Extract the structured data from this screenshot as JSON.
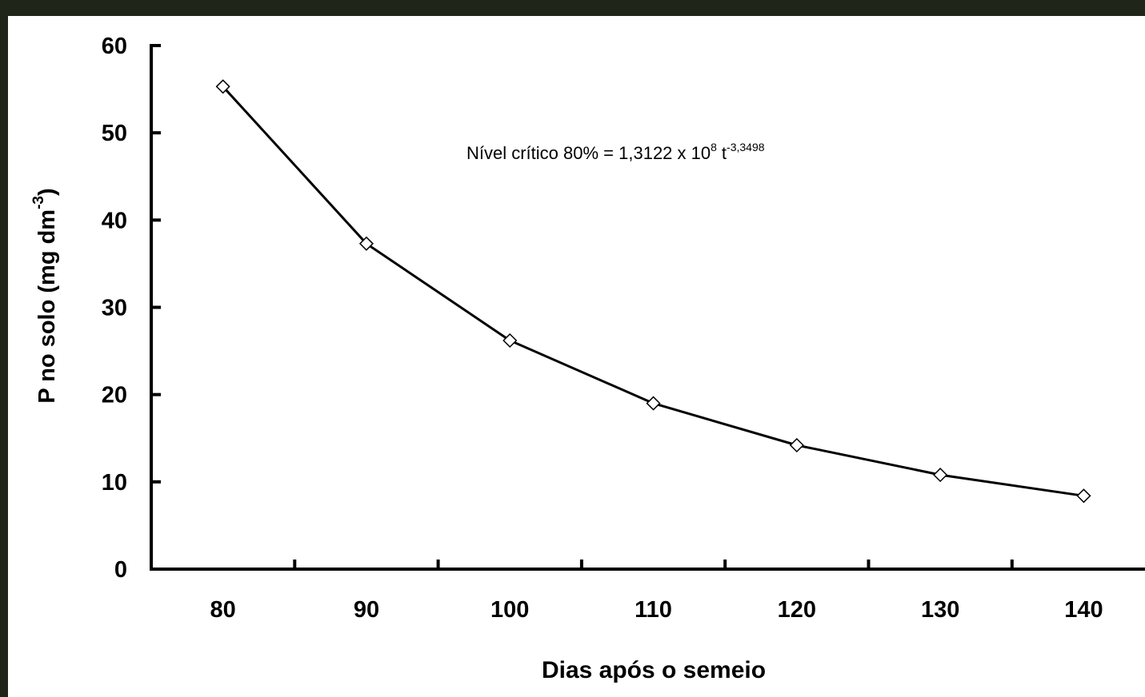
{
  "chart_data": {
    "type": "line",
    "y_label": [
      "P no solo (mg dm",
      "-3",
      ")"
    ],
    "x_label": "Dias após o semeio",
    "annotation": [
      "Nível crítico 80% = 1,3122 x 10",
      "8",
      "t",
      "-3,3498"
    ],
    "categories": [
      "80",
      "90",
      "100",
      "110",
      "120",
      "130",
      "140"
    ],
    "series": [
      {
        "color": "#000000",
        "values": [
          55.3,
          37.3,
          26.2,
          19.0,
          14.2,
          10.8,
          8.4
        ]
      }
    ],
    "ylim": [
      0,
      60
    ],
    "yticks": [
      0,
      10,
      20,
      30,
      40,
      50,
      60
    ]
  }
}
